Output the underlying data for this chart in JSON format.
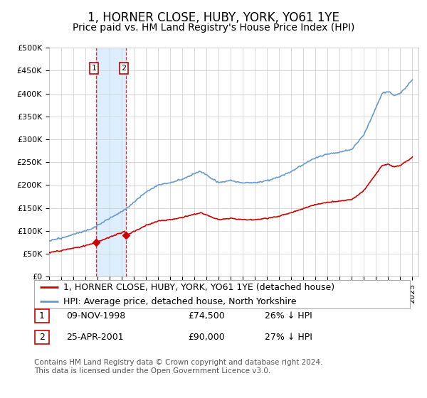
{
  "title": "1, HORNER CLOSE, HUBY, YORK, YO61 1YE",
  "subtitle": "Price paid vs. HM Land Registry's House Price Index (HPI)",
  "ylim": [
    0,
    500000
  ],
  "yticks": [
    0,
    50000,
    100000,
    150000,
    200000,
    250000,
    300000,
    350000,
    400000,
    450000,
    500000
  ],
  "ytick_labels": [
    "£0",
    "£50K",
    "£100K",
    "£150K",
    "£200K",
    "£250K",
    "£300K",
    "£350K",
    "£400K",
    "£450K",
    "£500K"
  ],
  "hpi_color": "#6699cc",
  "price_color": "#cc0000",
  "shading_color": "#ddeeff",
  "grid_color": "#cccccc",
  "background_color": "#ffffff",
  "purchase1_date": 1998.86,
  "purchase1_price": 74500,
  "purchase2_date": 2001.32,
  "purchase2_price": 90000,
  "legend_line1": "1, HORNER CLOSE, HUBY, YORK, YO61 1YE (detached house)",
  "legend_line2": "HPI: Average price, detached house, North Yorkshire",
  "table_row1_num": "1",
  "table_row1_date": "09-NOV-1998",
  "table_row1_price": "£74,500",
  "table_row1_hpi": "26% ↓ HPI",
  "table_row2_num": "2",
  "table_row2_date": "25-APR-2001",
  "table_row2_price": "£90,000",
  "table_row2_hpi": "27% ↓ HPI",
  "footer": "Contains HM Land Registry data © Crown copyright and database right 2024.\nThis data is licensed under the Open Government Licence v3.0.",
  "title_fontsize": 12,
  "subtitle_fontsize": 10,
  "tick_fontsize": 8,
  "legend_fontsize": 9,
  "table_fontsize": 9,
  "footer_fontsize": 7.5
}
